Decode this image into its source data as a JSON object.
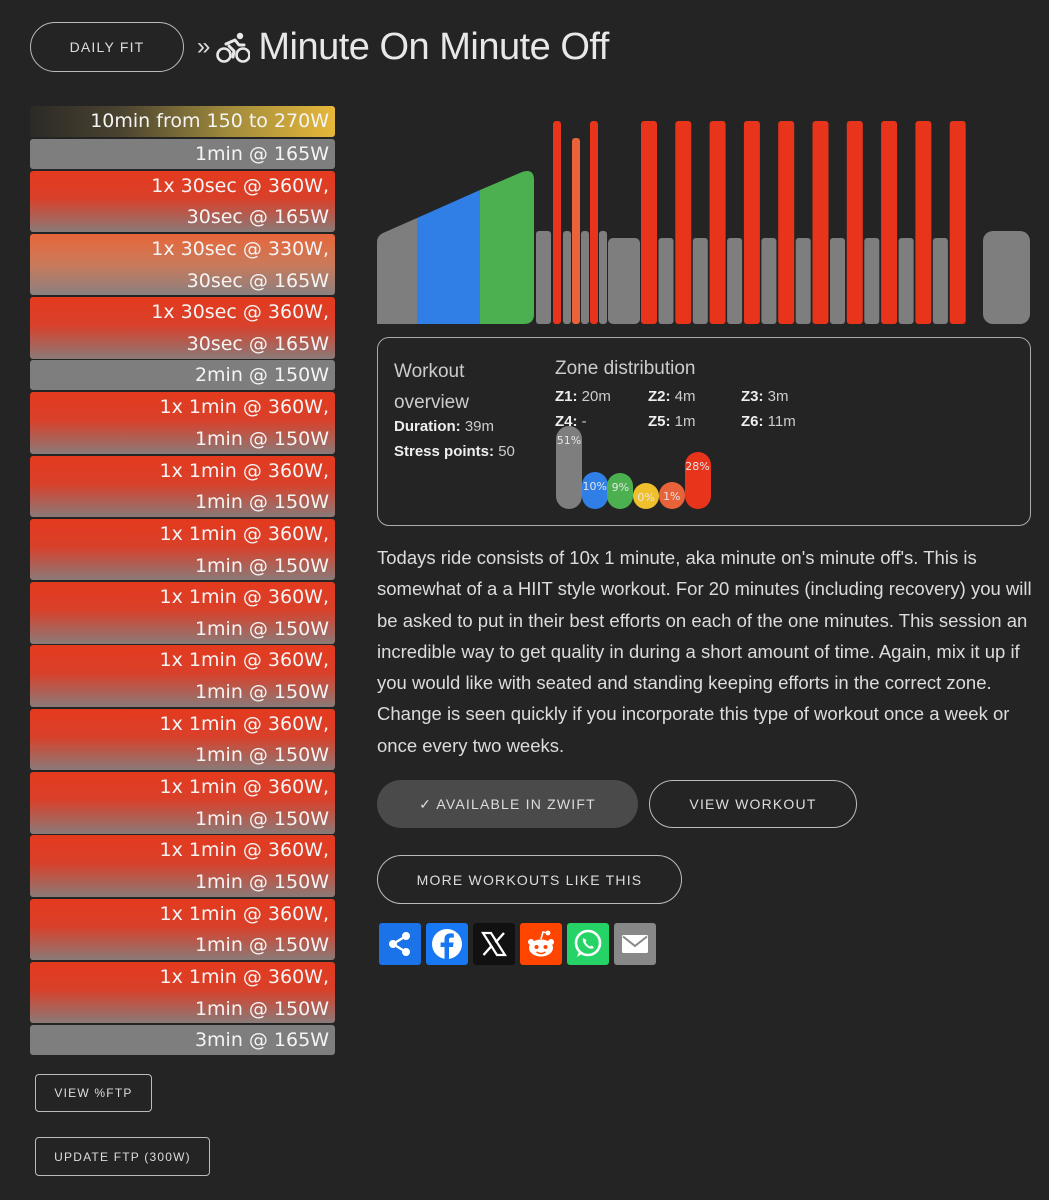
{
  "header": {
    "brand_button": "DAILY FIT",
    "separator": "»",
    "title": "Minute On Minute Off"
  },
  "segments": [
    {
      "kind": "ramp",
      "lines": [
        "10min from 150 to 270W"
      ]
    },
    {
      "kind": "grey",
      "lines": [
        "1min @ 165W"
      ]
    },
    {
      "kind": "red",
      "lines": [
        "1x 30sec @ 360W,",
        "30sec @ 165W"
      ]
    },
    {
      "kind": "orange",
      "lines": [
        "1x 30sec @ 330W,",
        "30sec @ 165W"
      ]
    },
    {
      "kind": "red",
      "lines": [
        "1x 30sec @ 360W,",
        "30sec @ 165W"
      ]
    },
    {
      "kind": "grey",
      "lines": [
        "2min @ 150W"
      ]
    },
    {
      "kind": "red",
      "lines": [
        "1x 1min @ 360W,",
        "1min @ 150W"
      ]
    },
    {
      "kind": "red",
      "lines": [
        "1x 1min @ 360W,",
        "1min @ 150W"
      ]
    },
    {
      "kind": "red",
      "lines": [
        "1x 1min @ 360W,",
        "1min @ 150W"
      ]
    },
    {
      "kind": "red",
      "lines": [
        "1x 1min @ 360W,",
        "1min @ 150W"
      ]
    },
    {
      "kind": "red",
      "lines": [
        "1x 1min @ 360W,",
        "1min @ 150W"
      ]
    },
    {
      "kind": "red",
      "lines": [
        "1x 1min @ 360W,",
        "1min @ 150W"
      ]
    },
    {
      "kind": "red",
      "lines": [
        "1x 1min @ 360W,",
        "1min @ 150W"
      ]
    },
    {
      "kind": "red",
      "lines": [
        "1x 1min @ 360W,",
        "1min @ 150W"
      ]
    },
    {
      "kind": "red",
      "lines": [
        "1x 1min @ 360W,",
        "1min @ 150W"
      ]
    },
    {
      "kind": "red",
      "lines": [
        "1x 1min @ 360W,",
        "1min @ 150W"
      ]
    },
    {
      "kind": "grey",
      "lines": [
        "3min @ 165W"
      ]
    }
  ],
  "buttons": {
    "view_ftp": "VIEW %FTP",
    "update_ftp": "UPDATE FTP (300W)",
    "zwift": "✓ AVAILABLE IN ZWIFT",
    "view_workout": "VIEW WORKOUT",
    "more_workouts": "MORE WORKOUTS LIKE THIS"
  },
  "overview": {
    "title": "Workout overview",
    "duration_label": "Duration:",
    "duration_value": "39m",
    "stress_label": "Stress points:",
    "stress_value": "50",
    "zone_title": "Zone distribution",
    "zones": [
      {
        "label": "Z1:",
        "value": "20m"
      },
      {
        "label": "Z2:",
        "value": "4m"
      },
      {
        "label": "Z3:",
        "value": "3m"
      },
      {
        "label": "Z4:",
        "value": "-"
      },
      {
        "label": "Z5:",
        "value": "1m"
      },
      {
        "label": "Z6:",
        "value": "11m"
      }
    ],
    "bubbles": [
      {
        "pct": "51%",
        "value": 51,
        "color": "#7e7e7e"
      },
      {
        "pct": "10%",
        "value": 10,
        "color": "#2f7fe6"
      },
      {
        "pct": "9%",
        "value": 9,
        "color": "#4caf50"
      },
      {
        "pct": "0%",
        "value": 0,
        "color": "#f0c02c"
      },
      {
        "pct": "1%",
        "value": 1,
        "color": "#e8623a"
      },
      {
        "pct": "28%",
        "value": 28,
        "color": "#e8341a"
      }
    ]
  },
  "description": "Todays ride consists of 10x 1 minute, aka minute on's minute off's. This is somewhat of a a HIIT style workout. For 20 minutes (including recovery) you will be asked to put in their best efforts on each of the one minutes. This session an incredible way to get quality in during a short amount of time. Again, mix it up if you would like with seated and standing keeping efforts in the correct zone. Change is seen quickly if you incorporate this type of workout once a week or once every two weeks.",
  "share_icons": [
    {
      "name": "share-icon",
      "color": "#1a73e8"
    },
    {
      "name": "facebook-icon",
      "color": "#1877f2"
    },
    {
      "name": "x-icon",
      "color": "#111111"
    },
    {
      "name": "reddit-icon",
      "color": "#ff4500"
    },
    {
      "name": "whatsapp-icon",
      "color": "#25d366"
    },
    {
      "name": "email-icon",
      "color": "#888888"
    }
  ],
  "colors": {
    "z1": "#7e7e7e",
    "z2": "#2f7fe6",
    "z3": "#4caf50",
    "z5": "#e8623a",
    "z6": "#e8341a"
  }
}
